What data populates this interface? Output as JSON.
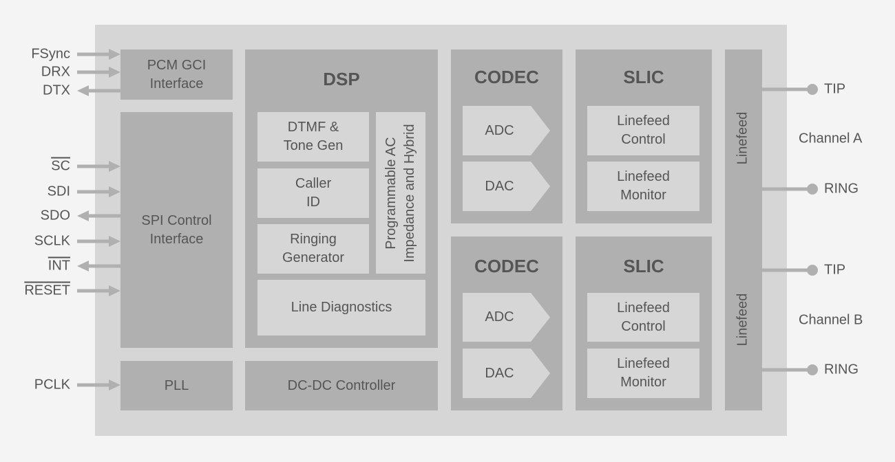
{
  "colors": {
    "background": "#f4f4f4",
    "chip": "#d6d6d6",
    "block": "#b0b0b0",
    "text": "#555555"
  },
  "blocks": {
    "pcm": "PCM GCI\nInterface",
    "spi": "SPI Control\nInterface",
    "pll": "PLL",
    "dsp": {
      "title": "DSP",
      "dtmf": "DTMF &\nTone Gen",
      "caller": "Caller\nID",
      "ringing": "Ringing\nGenerator",
      "programmable": "Programmable AC\nImpedance and Hybrid",
      "diagnostics": "Line Diagnostics"
    },
    "dcdc": "DC-DC Controller",
    "codec_a": {
      "title": "CODEC",
      "adc": "ADC",
      "dac": "DAC"
    },
    "codec_b": {
      "title": "CODEC",
      "adc": "ADC",
      "dac": "DAC"
    },
    "slic_a": {
      "title": "SLIC",
      "control": "Linefeed\nControl",
      "monitor": "Linefeed\nMonitor"
    },
    "slic_b": {
      "title": "SLIC",
      "control": "Linefeed\nControl",
      "monitor": "Linefeed\nMonitor"
    },
    "linefeed_a": "Linefeed",
    "linefeed_b": "Linefeed"
  },
  "pins_left": [
    {
      "label": "FSync",
      "dir": "in",
      "overline": false
    },
    {
      "label": "DRX",
      "dir": "in",
      "overline": false
    },
    {
      "label": "DTX",
      "dir": "out",
      "overline": false
    },
    {
      "label": "SC",
      "dir": "in",
      "overline": true
    },
    {
      "label": "SDI",
      "dir": "in",
      "overline": false
    },
    {
      "label": "SDO",
      "dir": "out",
      "overline": false
    },
    {
      "label": "SCLK",
      "dir": "in",
      "overline": false
    },
    {
      "label": "INT",
      "dir": "out",
      "overline": true
    },
    {
      "label": "RESET",
      "dir": "in",
      "overline": true
    },
    {
      "label": "PCLK",
      "dir": "in",
      "overline": false
    }
  ],
  "pins_right": [
    {
      "label": "TIP"
    },
    {
      "label": "RING"
    },
    {
      "label": "TIP"
    },
    {
      "label": "RING"
    }
  ],
  "channels": [
    "Channel A",
    "Channel B"
  ]
}
